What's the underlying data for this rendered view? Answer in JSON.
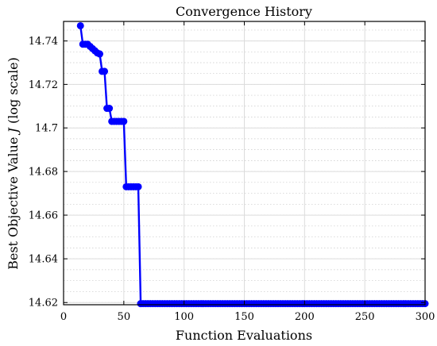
{
  "chart_data": {
    "type": "line",
    "title": "Convergence History",
    "xlabel": "Function Evaluations",
    "ylabel": "Best Objective Value J (log scale)",
    "ylabel_parts": {
      "before": "Best Objective Value ",
      "var": "J",
      "after": " (log scale)"
    },
    "xlim": [
      0,
      300
    ],
    "ylim": [
      14.619,
      14.749
    ],
    "y_scale": "log",
    "grid": true,
    "minor_grid": true,
    "x_ticks": [
      0,
      50,
      100,
      150,
      200,
      250,
      300
    ],
    "x_tick_labels": [
      "0",
      "50",
      "100",
      "150",
      "200",
      "250",
      "300"
    ],
    "y_ticks": [
      14.62,
      14.64,
      14.66,
      14.68,
      14.7,
      14.72,
      14.74
    ],
    "y_tick_labels": [
      "14.62",
      "14.64",
      "14.66",
      "14.68",
      "14.7",
      "14.72",
      "14.74"
    ],
    "series": [
      {
        "color": "#0000ff",
        "marker": "circle",
        "x": [
          14,
          16,
          18,
          20,
          22,
          24,
          26,
          28,
          30,
          32,
          34,
          36,
          38,
          40,
          42,
          44,
          46,
          48,
          50,
          52,
          54,
          56,
          58,
          60,
          62,
          64,
          300
        ],
        "y": [
          14.747,
          14.7385,
          14.7385,
          14.7385,
          14.7375,
          14.7365,
          14.7355,
          14.7345,
          14.734,
          14.726,
          14.726,
          14.709,
          14.709,
          14.703,
          14.703,
          14.703,
          14.703,
          14.703,
          14.703,
          14.673,
          14.673,
          14.673,
          14.673,
          14.673,
          14.673,
          14.6195,
          14.6195
        ],
        "dense_tail": {
          "from": 64,
          "to": 300,
          "step": 2,
          "y": 14.6195
        }
      }
    ]
  }
}
